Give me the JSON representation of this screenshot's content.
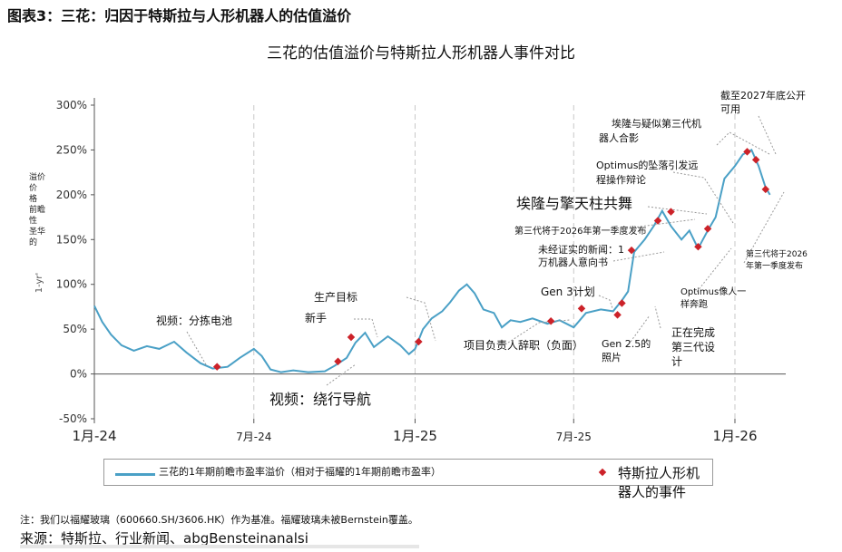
{
  "header": {
    "figure_title": "图表3：三花：归因于特斯拉与人形机器人的估值溢价"
  },
  "footer": {
    "note": "注：我们以福耀玻璃（600660.SH/3606.HK）作为基准。福耀玻璃未被Bernstein覆盖。",
    "source": "来源：特斯拉、行业新闻、abgBensteinanalsi"
  },
  "colors": {
    "line": "#4aa0c6",
    "event": "#cc2229",
    "grid": "#c8c8c8",
    "leader": "#999999"
  },
  "chart_data": {
    "type": "line",
    "title": "三花的估值溢价与特斯拉人形机器人事件对比",
    "ylabel": "溢价价格前瞻性市盈率",
    "ylabel_vertical": [
      "溢价",
      "价",
      "格",
      "前瞻",
      "性",
      "圣华",
      "的"
    ],
    "ylabel_rotated": "1-yr'",
    "x_range": [
      "2024-01-01",
      "2026-02-28"
    ],
    "ylim": [
      -50,
      300
    ],
    "yticks": [
      -50,
      0,
      50,
      100,
      150,
      200,
      250,
      300
    ],
    "ytick_labels": [
      "-50%",
      "0%",
      "50%",
      "100%",
      "150%",
      "200%",
      "250%",
      "300%"
    ],
    "xticks": [
      {
        "date": "2024-01-01",
        "label": "1月-24"
      },
      {
        "date": "2024-07-01",
        "label": "7月-24"
      },
      {
        "date": "2025-01-01",
        "label": "1月-25"
      },
      {
        "date": "2025-07-01",
        "label": "7月-25"
      },
      {
        "date": "2026-01-01",
        "label": "1月-26"
      }
    ],
    "legend": {
      "position": "bottom",
      "series_label": "三花的1年期前瞻市盈率溢价（相对于福耀的1年期前瞻市盈率）",
      "event_label": "特斯拉人形机器人的事件"
    },
    "series": [
      {
        "name": "三花的1年期前瞻市盈率溢价（相对于福耀的1年期前瞻市盈率）",
        "points": [
          [
            "2024-01-01",
            76
          ],
          [
            "2024-01-10",
            58
          ],
          [
            "2024-01-20",
            44
          ],
          [
            "2024-02-01",
            32
          ],
          [
            "2024-02-15",
            26
          ],
          [
            "2024-03-01",
            31
          ],
          [
            "2024-03-15",
            28
          ],
          [
            "2024-04-01",
            36
          ],
          [
            "2024-04-15",
            24
          ],
          [
            "2024-05-01",
            12
          ],
          [
            "2024-05-15",
            6
          ],
          [
            "2024-06-01",
            8
          ],
          [
            "2024-06-15",
            18
          ],
          [
            "2024-07-01",
            28
          ],
          [
            "2024-07-10",
            20
          ],
          [
            "2024-07-20",
            5
          ],
          [
            "2024-08-01",
            2
          ],
          [
            "2024-08-15",
            4
          ],
          [
            "2024-09-01",
            2
          ],
          [
            "2024-09-20",
            3
          ],
          [
            "2024-10-01",
            9
          ],
          [
            "2024-10-15",
            18
          ],
          [
            "2024-10-25",
            35
          ],
          [
            "2024-11-05",
            46
          ],
          [
            "2024-11-15",
            30
          ],
          [
            "2024-12-01",
            42
          ],
          [
            "2024-12-15",
            32
          ],
          [
            "2024-12-25",
            22
          ],
          [
            "2025-01-01",
            28
          ],
          [
            "2025-01-10",
            50
          ],
          [
            "2025-01-20",
            62
          ],
          [
            "2025-02-01",
            70
          ],
          [
            "2025-02-10",
            80
          ],
          [
            "2025-02-20",
            93
          ],
          [
            "2025-03-01",
            100
          ],
          [
            "2025-03-10",
            90
          ],
          [
            "2025-03-20",
            72
          ],
          [
            "2025-04-01",
            68
          ],
          [
            "2025-04-10",
            52
          ],
          [
            "2025-04-20",
            60
          ],
          [
            "2025-05-01",
            58
          ],
          [
            "2025-05-15",
            62
          ],
          [
            "2025-06-01",
            56
          ],
          [
            "2025-06-15",
            60
          ],
          [
            "2025-07-01",
            52
          ],
          [
            "2025-07-15",
            68
          ],
          [
            "2025-08-01",
            72
          ],
          [
            "2025-08-15",
            70
          ],
          [
            "2025-08-25",
            82
          ],
          [
            "2025-09-01",
            92
          ],
          [
            "2025-09-08",
            136
          ],
          [
            "2025-09-20",
            150
          ],
          [
            "2025-10-01",
            166
          ],
          [
            "2025-10-10",
            182
          ],
          [
            "2025-10-20",
            165
          ],
          [
            "2025-11-01",
            150
          ],
          [
            "2025-11-10",
            160
          ],
          [
            "2025-11-20",
            140
          ],
          [
            "2025-12-01",
            160
          ],
          [
            "2025-12-10",
            175
          ],
          [
            "2025-12-20",
            218
          ],
          [
            "2026-01-01",
            232
          ],
          [
            "2026-01-10",
            245
          ],
          [
            "2026-01-20",
            250
          ],
          [
            "2026-01-28",
            232
          ],
          [
            "2026-02-05",
            208
          ],
          [
            "2026-02-10",
            200
          ]
        ]
      }
    ],
    "events": [
      {
        "date": "2024-05-20",
        "value": 8
      },
      {
        "date": "2024-10-05",
        "value": 14
      },
      {
        "date": "2024-10-20",
        "value": 41
      },
      {
        "date": "2025-01-05",
        "value": 36
      },
      {
        "date": "2025-06-05",
        "value": 59
      },
      {
        "date": "2025-07-10",
        "value": 73
      },
      {
        "date": "2025-08-20",
        "value": 66
      },
      {
        "date": "2025-08-25",
        "value": 79
      },
      {
        "date": "2025-09-05",
        "value": 138
      },
      {
        "date": "2025-10-05",
        "value": 171
      },
      {
        "date": "2025-10-20",
        "value": 181
      },
      {
        "date": "2025-11-20",
        "value": 142
      },
      {
        "date": "2025-12-01",
        "value": 162
      },
      {
        "date": "2026-01-15",
        "value": 248
      },
      {
        "date": "2026-01-25",
        "value": 239
      },
      {
        "date": "2026-02-05",
        "value": 206
      }
    ],
    "annotations": [
      {
        "text": "视频：分拣电池",
        "size": "small"
      },
      {
        "text": "视频：绕行导航",
        "size": "large"
      },
      {
        "text": "生产目标",
        "size": "small"
      },
      {
        "text": "新手",
        "size": "small"
      },
      {
        "text": "项目负责人辞职（负面）",
        "size": "small"
      },
      {
        "text": "Gen 3计划",
        "size": "small"
      },
      {
        "text": "Gen 2.5的",
        "size": "tiny"
      },
      {
        "text": "照片",
        "size": "tiny"
      },
      {
        "text": "正在完成",
        "size": "small"
      },
      {
        "text": "第三代设",
        "size": "small"
      },
      {
        "text": "计",
        "size": "small"
      },
      {
        "text": "未经证实的新闻：1",
        "size": "tiny"
      },
      {
        "text": "万机器人意向书",
        "size": "tiny"
      },
      {
        "text": "第三代将于2026年第一季度发布",
        "size": "tiny"
      },
      {
        "text": "埃隆与擎天柱共舞",
        "size": "large"
      },
      {
        "text": "Optimus的坠落引发远",
        "size": "tiny"
      },
      {
        "text": "程操作辩论",
        "size": "tiny"
      },
      {
        "text": "埃隆与疑似第三代机",
        "size": "tiny"
      },
      {
        "text": "器人合影",
        "size": "tiny"
      },
      {
        "text": "截至2027年底公开",
        "size": "tiny"
      },
      {
        "text": "可用",
        "size": "tiny"
      },
      {
        "text": "Optimus像人一",
        "size": "micro"
      },
      {
        "text": "样奔跑",
        "size": "micro"
      },
      {
        "text": "第三代将于2026",
        "size": "micro"
      },
      {
        "text": "年第一季度发布",
        "size": "micro"
      }
    ]
  }
}
